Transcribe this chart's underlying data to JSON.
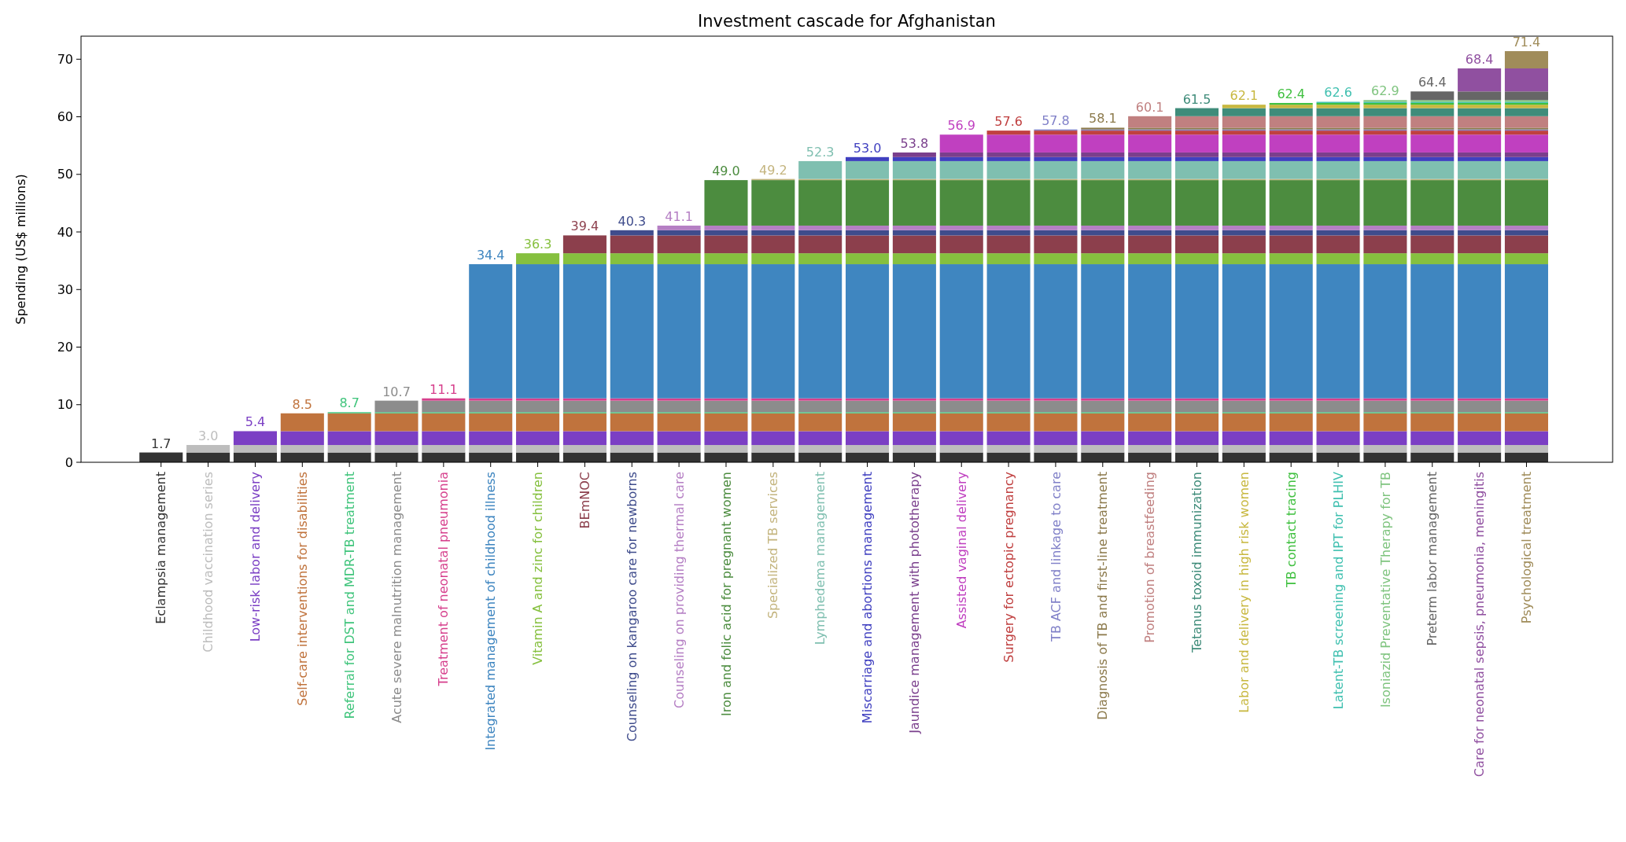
{
  "chart_data": {
    "type": "bar",
    "title": "Investment cascade for Afghanistan",
    "ylabel": "Spending (US$ millions)",
    "stacked": true,
    "categories": [
      "Eclampsia management",
      "Childhood vaccination series",
      "Low-risk labor and delivery",
      "Self-care interventions for disabilities",
      "Referral for DST and MDR-TB treatment",
      "Acute severe malnutrition management",
      "Treatment of neonatal pneumonia",
      "Integrated management of childhood illness",
      "Vitamin A and zinc for children",
      "BEmNOC",
      "Counseling on kangaroo care for newborns",
      "Counseling on providing thermal care",
      "Iron and folic acid for pregnant women",
      "Specialized TB services",
      "Lymphedema management",
      "Miscarriage and abortions management",
      "Jaundice management with phototherapy",
      "Assisted vaginal delivery",
      "Surgery for ectopic pregnancy",
      "TB ACF and linkage to care",
      "Diagnosis of TB and first-line treatment",
      "Promotion of breastfeeding",
      "Tetanus toxoid immunization",
      "Labor and delivery in high risk women",
      "TB contact tracing",
      "Latent-TB screening and IPT for PLHIV",
      "Isoniazid Preventative Therapy for TB",
      "Preterm labor management",
      "Care for neonatal sepsis, pneumonia, meningitis",
      "Psychological treatment"
    ],
    "series": [
      {
        "color": "#333333",
        "values": [
          1.7,
          1.7,
          1.7,
          1.7,
          1.7,
          1.7,
          1.7,
          1.7,
          1.7,
          1.7,
          1.7,
          1.7,
          1.7,
          1.7,
          1.7,
          1.7,
          1.7,
          1.7,
          1.7,
          1.7,
          1.7,
          1.7,
          1.7,
          1.7,
          1.7,
          1.7,
          1.7,
          1.7,
          1.7,
          1.7
        ]
      },
      {
        "color": "#bdbdbd",
        "values": [
          null,
          1.3,
          1.3,
          1.3,
          1.3,
          1.3,
          1.3,
          1.3,
          1.3,
          1.3,
          1.3,
          1.3,
          1.3,
          1.3,
          1.3,
          1.3,
          1.3,
          1.3,
          1.3,
          1.3,
          1.3,
          1.3,
          1.3,
          1.3,
          1.3,
          1.3,
          1.3,
          1.3,
          1.3,
          1.3
        ]
      },
      {
        "color": "#7b3fc4",
        "values": [
          null,
          null,
          2.4,
          2.4,
          2.4,
          2.4,
          2.4,
          2.4,
          2.4,
          2.4,
          2.4,
          2.4,
          2.4,
          2.4,
          2.4,
          2.4,
          2.4,
          2.4,
          2.4,
          2.4,
          2.4,
          2.4,
          2.4,
          2.4,
          2.4,
          2.4,
          2.4,
          2.4,
          2.4,
          2.4
        ]
      },
      {
        "color": "#c0733d",
        "values": [
          null,
          null,
          null,
          3.1,
          3.1,
          3.1,
          3.1,
          3.1,
          3.1,
          3.1,
          3.1,
          3.1,
          3.1,
          3.1,
          3.1,
          3.1,
          3.1,
          3.1,
          3.1,
          3.1,
          3.1,
          3.1,
          3.1,
          3.1,
          3.1,
          3.1,
          3.1,
          3.1,
          3.1,
          3.1
        ]
      },
      {
        "color": "#3fc47b",
        "values": [
          null,
          null,
          null,
          null,
          0.2,
          0.2,
          0.2,
          0.2,
          0.2,
          0.2,
          0.2,
          0.2,
          0.2,
          0.2,
          0.2,
          0.2,
          0.2,
          0.2,
          0.2,
          0.2,
          0.2,
          0.2,
          0.2,
          0.2,
          0.2,
          0.2,
          0.2,
          0.2,
          0.2,
          0.2
        ]
      },
      {
        "color": "#8c8c8c",
        "values": [
          null,
          null,
          null,
          null,
          null,
          2.0,
          2.0,
          2.0,
          2.0,
          2.0,
          2.0,
          2.0,
          2.0,
          2.0,
          2.0,
          2.0,
          2.0,
          2.0,
          2.0,
          2.0,
          2.0,
          2.0,
          2.0,
          2.0,
          2.0,
          2.0,
          2.0,
          2.0,
          2.0,
          2.0
        ]
      },
      {
        "color": "#d63f8c",
        "values": [
          null,
          null,
          null,
          null,
          null,
          null,
          0.4,
          0.4,
          0.4,
          0.4,
          0.4,
          0.4,
          0.4,
          0.4,
          0.4,
          0.4,
          0.4,
          0.4,
          0.4,
          0.4,
          0.4,
          0.4,
          0.4,
          0.4,
          0.4,
          0.4,
          0.4,
          0.4,
          0.4,
          0.4
        ]
      },
      {
        "color": "#3f86c0",
        "values": [
          null,
          null,
          null,
          null,
          null,
          null,
          null,
          23.3,
          23.3,
          23.3,
          23.3,
          23.3,
          23.3,
          23.3,
          23.3,
          23.3,
          23.3,
          23.3,
          23.3,
          23.3,
          23.3,
          23.3,
          23.3,
          23.3,
          23.3,
          23.3,
          23.3,
          23.3,
          23.3,
          23.3
        ]
      },
      {
        "color": "#86c03f",
        "values": [
          null,
          null,
          null,
          null,
          null,
          null,
          null,
          null,
          1.9,
          1.9,
          1.9,
          1.9,
          1.9,
          1.9,
          1.9,
          1.9,
          1.9,
          1.9,
          1.9,
          1.9,
          1.9,
          1.9,
          1.9,
          1.9,
          1.9,
          1.9,
          1.9,
          1.9,
          1.9,
          1.9
        ]
      },
      {
        "color": "#8c3f4c",
        "values": [
          null,
          null,
          null,
          null,
          null,
          null,
          null,
          null,
          null,
          3.1,
          3.1,
          3.1,
          3.1,
          3.1,
          3.1,
          3.1,
          3.1,
          3.1,
          3.1,
          3.1,
          3.1,
          3.1,
          3.1,
          3.1,
          3.1,
          3.1,
          3.1,
          3.1,
          3.1,
          3.1
        ]
      },
      {
        "color": "#3f4c8c",
        "values": [
          null,
          null,
          null,
          null,
          null,
          null,
          null,
          null,
          null,
          null,
          0.9,
          0.9,
          0.9,
          0.9,
          0.9,
          0.9,
          0.9,
          0.9,
          0.9,
          0.9,
          0.9,
          0.9,
          0.9,
          0.9,
          0.9,
          0.9,
          0.9,
          0.9,
          0.9,
          0.9
        ]
      },
      {
        "color": "#b57fc4",
        "values": [
          null,
          null,
          null,
          null,
          null,
          null,
          null,
          null,
          null,
          null,
          null,
          0.8,
          0.8,
          0.8,
          0.8,
          0.8,
          0.8,
          0.8,
          0.8,
          0.8,
          0.8,
          0.8,
          0.8,
          0.8,
          0.8,
          0.8,
          0.8,
          0.8,
          0.8,
          0.8
        ]
      },
      {
        "color": "#4c8c3f",
        "values": [
          null,
          null,
          null,
          null,
          null,
          null,
          null,
          null,
          null,
          null,
          null,
          null,
          7.9,
          7.9,
          7.9,
          7.9,
          7.9,
          7.9,
          7.9,
          7.9,
          7.9,
          7.9,
          7.9,
          7.9,
          7.9,
          7.9,
          7.9,
          7.9,
          7.9,
          7.9
        ]
      },
      {
        "color": "#c4b57f",
        "values": [
          null,
          null,
          null,
          null,
          null,
          null,
          null,
          null,
          null,
          null,
          null,
          null,
          null,
          0.2,
          0.2,
          0.2,
          0.2,
          0.2,
          0.2,
          0.2,
          0.2,
          0.2,
          0.2,
          0.2,
          0.2,
          0.2,
          0.2,
          0.2,
          0.2,
          0.2
        ]
      },
      {
        "color": "#7fbfb0",
        "values": [
          null,
          null,
          null,
          null,
          null,
          null,
          null,
          null,
          null,
          null,
          null,
          null,
          null,
          null,
          3.1,
          3.1,
          3.1,
          3.1,
          3.1,
          3.1,
          3.1,
          3.1,
          3.1,
          3.1,
          3.1,
          3.1,
          3.1,
          3.1,
          3.1,
          3.1
        ]
      },
      {
        "color": "#4040c0",
        "values": [
          null,
          null,
          null,
          null,
          null,
          null,
          null,
          null,
          null,
          null,
          null,
          null,
          null,
          null,
          null,
          0.7,
          0.7,
          0.7,
          0.7,
          0.7,
          0.7,
          0.7,
          0.7,
          0.7,
          0.7,
          0.7,
          0.7,
          0.7,
          0.7,
          0.7
        ]
      },
      {
        "color": "#7a3f8c",
        "values": [
          null,
          null,
          null,
          null,
          null,
          null,
          null,
          null,
          null,
          null,
          null,
          null,
          null,
          null,
          null,
          null,
          0.8,
          0.8,
          0.8,
          0.8,
          0.8,
          0.8,
          0.8,
          0.8,
          0.8,
          0.8,
          0.8,
          0.8,
          0.8,
          0.8
        ]
      },
      {
        "color": "#c040c0",
        "values": [
          null,
          null,
          null,
          null,
          null,
          null,
          null,
          null,
          null,
          null,
          null,
          null,
          null,
          null,
          null,
          null,
          null,
          3.1,
          3.1,
          3.1,
          3.1,
          3.1,
          3.1,
          3.1,
          3.1,
          3.1,
          3.1,
          3.1,
          3.1,
          3.1
        ]
      },
      {
        "color": "#c04040",
        "values": [
          null,
          null,
          null,
          null,
          null,
          null,
          null,
          null,
          null,
          null,
          null,
          null,
          null,
          null,
          null,
          null,
          null,
          null,
          0.7,
          0.7,
          0.7,
          0.7,
          0.7,
          0.7,
          0.7,
          0.7,
          0.7,
          0.7,
          0.7,
          0.7
        ]
      },
      {
        "color": "#8080c8",
        "values": [
          null,
          null,
          null,
          null,
          null,
          null,
          null,
          null,
          null,
          null,
          null,
          null,
          null,
          null,
          null,
          null,
          null,
          null,
          null,
          0.2,
          0.2,
          0.2,
          0.2,
          0.2,
          0.2,
          0.2,
          0.2,
          0.2,
          0.2,
          0.2
        ]
      },
      {
        "color": "#8c7a4c",
        "values": [
          null,
          null,
          null,
          null,
          null,
          null,
          null,
          null,
          null,
          null,
          null,
          null,
          null,
          null,
          null,
          null,
          null,
          null,
          null,
          null,
          0.3,
          0.3,
          0.3,
          0.3,
          0.3,
          0.3,
          0.3,
          0.3,
          0.3,
          0.3
        ]
      },
      {
        "color": "#c08080",
        "values": [
          null,
          null,
          null,
          null,
          null,
          null,
          null,
          null,
          null,
          null,
          null,
          null,
          null,
          null,
          null,
          null,
          null,
          null,
          null,
          null,
          null,
          2.0,
          2.0,
          2.0,
          2.0,
          2.0,
          2.0,
          2.0,
          2.0,
          2.0
        ]
      },
      {
        "color": "#3f8c7a",
        "values": [
          null,
          null,
          null,
          null,
          null,
          null,
          null,
          null,
          null,
          null,
          null,
          null,
          null,
          null,
          null,
          null,
          null,
          null,
          null,
          null,
          null,
          null,
          1.4,
          1.4,
          1.4,
          1.4,
          1.4,
          1.4,
          1.4,
          1.4
        ]
      },
      {
        "color": "#c8b840",
        "values": [
          null,
          null,
          null,
          null,
          null,
          null,
          null,
          null,
          null,
          null,
          null,
          null,
          null,
          null,
          null,
          null,
          null,
          null,
          null,
          null,
          null,
          null,
          null,
          0.6,
          0.6,
          0.6,
          0.6,
          0.6,
          0.6,
          0.6
        ]
      },
      {
        "color": "#40c040",
        "values": [
          null,
          null,
          null,
          null,
          null,
          null,
          null,
          null,
          null,
          null,
          null,
          null,
          null,
          null,
          null,
          null,
          null,
          null,
          null,
          null,
          null,
          null,
          null,
          null,
          0.3,
          0.3,
          0.3,
          0.3,
          0.3,
          0.3
        ]
      },
      {
        "color": "#40c0b0",
        "values": [
          null,
          null,
          null,
          null,
          null,
          null,
          null,
          null,
          null,
          null,
          null,
          null,
          null,
          null,
          null,
          null,
          null,
          null,
          null,
          null,
          null,
          null,
          null,
          null,
          null,
          0.2,
          0.2,
          0.2,
          0.2,
          0.2
        ]
      },
      {
        "color": "#7fc47f",
        "values": [
          null,
          null,
          null,
          null,
          null,
          null,
          null,
          null,
          null,
          null,
          null,
          null,
          null,
          null,
          null,
          null,
          null,
          null,
          null,
          null,
          null,
          null,
          null,
          null,
          null,
          null,
          0.3,
          0.3,
          0.3,
          0.3
        ]
      },
      {
        "color": "#666666",
        "values": [
          null,
          null,
          null,
          null,
          null,
          null,
          null,
          null,
          null,
          null,
          null,
          null,
          null,
          null,
          null,
          null,
          null,
          null,
          null,
          null,
          null,
          null,
          null,
          null,
          null,
          null,
          null,
          1.5,
          1.5,
          1.5
        ]
      },
      {
        "color": "#9050a0",
        "values": [
          null,
          null,
          null,
          null,
          null,
          null,
          null,
          null,
          null,
          null,
          null,
          null,
          null,
          null,
          null,
          null,
          null,
          null,
          null,
          null,
          null,
          null,
          null,
          null,
          null,
          null,
          null,
          null,
          4.0,
          4.0
        ]
      },
      {
        "color": "#a08c5a",
        "values": [
          null,
          null,
          null,
          null,
          null,
          null,
          null,
          null,
          null,
          null,
          null,
          null,
          null,
          null,
          null,
          null,
          null,
          null,
          null,
          null,
          null,
          null,
          null,
          null,
          null,
          null,
          null,
          null,
          null,
          3.0
        ]
      }
    ],
    "totals": [
      "1.7",
      "3.0",
      "5.4",
      "8.5",
      "8.7",
      "10.7",
      "11.1",
      "34.4",
      "36.3",
      "39.4",
      "40.3",
      "41.1",
      "49.0",
      "49.2",
      "52.3",
      "53.0",
      "53.8",
      "56.9",
      "57.6",
      "57.8",
      "58.1",
      "60.1",
      "61.5",
      "62.1",
      "62.4",
      "62.6",
      "62.9",
      "64.4",
      "68.4",
      "71.4"
    ],
    "ylim": [
      0,
      74
    ],
    "yticks": [
      0,
      10,
      20,
      30,
      40,
      50,
      60,
      70
    ]
  }
}
